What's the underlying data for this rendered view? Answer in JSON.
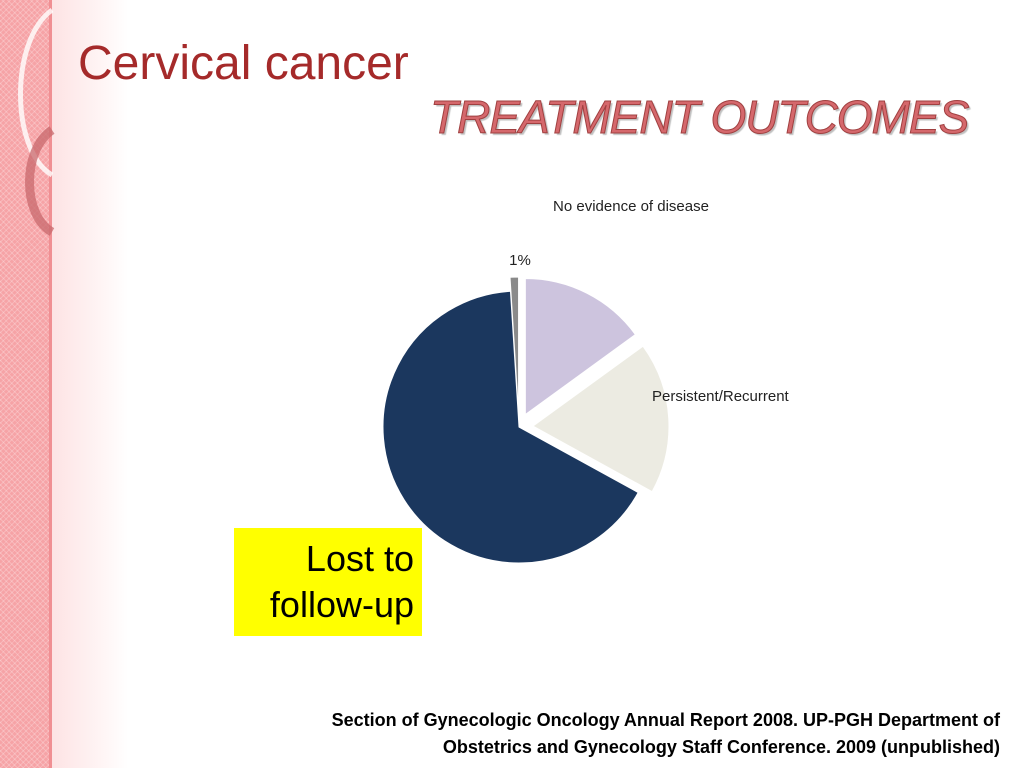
{
  "slide": {
    "title": "Cervical cancer",
    "subtitle": "TREATMENT OUTCOMES",
    "citation_line1": "Section of Gynecologic Oncology Annual Report 2008. UP-PGH Department of",
    "citation_line2": "Obstetrics and Gynecology Staff Conference. 2009 (unpublished)"
  },
  "colors": {
    "title": "#a52a2a",
    "subtitle": "#d5686c",
    "left_band": "#f6a3a6",
    "highlight_box": "#ffff00"
  },
  "chart_data": {
    "type": "pie",
    "slices": [
      {
        "label": "No evidence of disease",
        "value": 15,
        "color": "#cdc4de",
        "exploded": true
      },
      {
        "label": "Persistent/Recurrent",
        "value": 18,
        "color": "#ecebe2",
        "exploded": true
      },
      {
        "label": "Lost to follow-up",
        "value": 66,
        "color": "#1b375e",
        "exploded": false
      },
      {
        "label": "",
        "value": 1,
        "color": "#8a8a8a",
        "exploded": true
      }
    ],
    "data_labels": {
      "small_slice": "1%"
    },
    "labels_text": {
      "no_evidence": "No evidence of disease",
      "persistent": "Persistent/Recurrent",
      "lost_line1": "Lost to",
      "lost_line2": "follow-up"
    }
  }
}
